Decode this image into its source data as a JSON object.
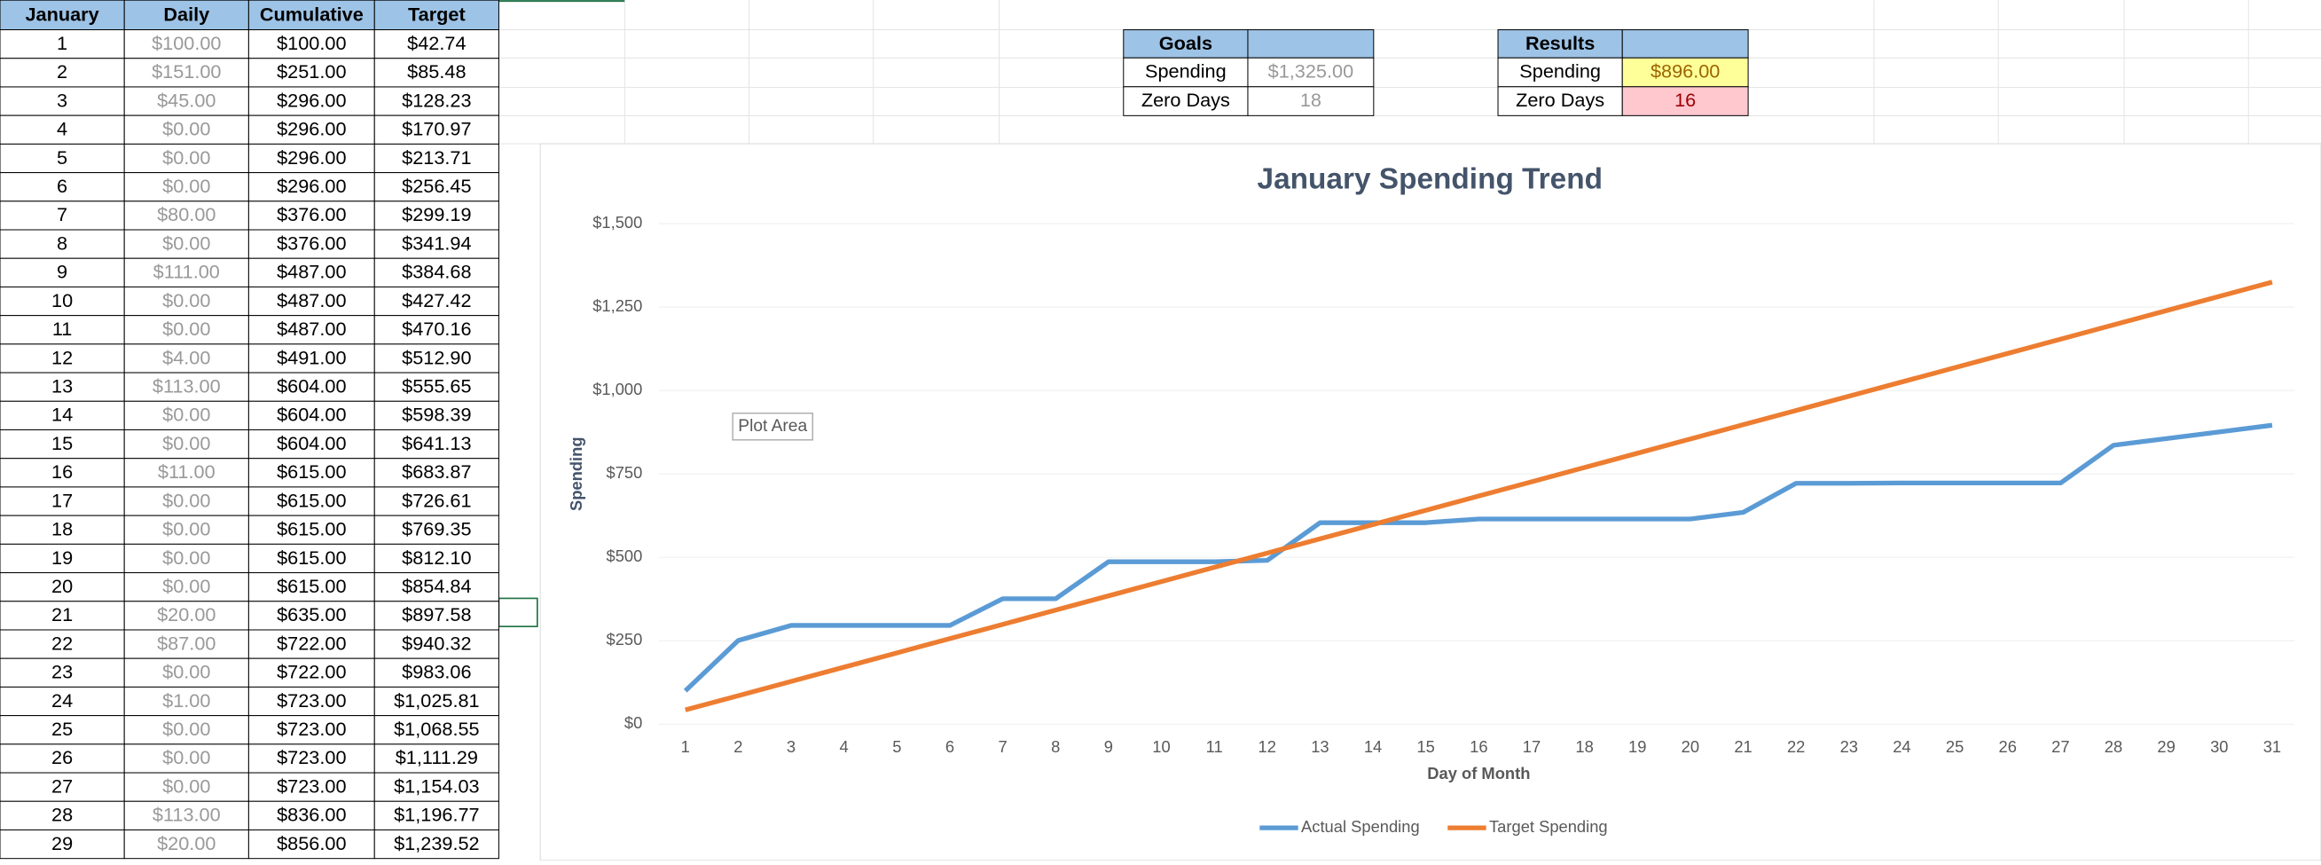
{
  "table": {
    "columns": [
      "January",
      "Daily",
      "Cumulative",
      "Target"
    ],
    "rows": [
      [
        "1",
        "$100.00",
        "$100.00",
        "$42.74"
      ],
      [
        "2",
        "$151.00",
        "$251.00",
        "$85.48"
      ],
      [
        "3",
        "$45.00",
        "$296.00",
        "$128.23"
      ],
      [
        "4",
        "$0.00",
        "$296.00",
        "$170.97"
      ],
      [
        "5",
        "$0.00",
        "$296.00",
        "$213.71"
      ],
      [
        "6",
        "$0.00",
        "$296.00",
        "$256.45"
      ],
      [
        "7",
        "$80.00",
        "$376.00",
        "$299.19"
      ],
      [
        "8",
        "$0.00",
        "$376.00",
        "$341.94"
      ],
      [
        "9",
        "$111.00",
        "$487.00",
        "$384.68"
      ],
      [
        "10",
        "$0.00",
        "$487.00",
        "$427.42"
      ],
      [
        "11",
        "$0.00",
        "$487.00",
        "$470.16"
      ],
      [
        "12",
        "$4.00",
        "$491.00",
        "$512.90"
      ],
      [
        "13",
        "$113.00",
        "$604.00",
        "$555.65"
      ],
      [
        "14",
        "$0.00",
        "$604.00",
        "$598.39"
      ],
      [
        "15",
        "$0.00",
        "$604.00",
        "$641.13"
      ],
      [
        "16",
        "$11.00",
        "$615.00",
        "$683.87"
      ],
      [
        "17",
        "$0.00",
        "$615.00",
        "$726.61"
      ],
      [
        "18",
        "$0.00",
        "$615.00",
        "$769.35"
      ],
      [
        "19",
        "$0.00",
        "$615.00",
        "$812.10"
      ],
      [
        "20",
        "$0.00",
        "$615.00",
        "$854.84"
      ],
      [
        "21",
        "$20.00",
        "$635.00",
        "$897.58"
      ],
      [
        "22",
        "$87.00",
        "$722.00",
        "$940.32"
      ],
      [
        "23",
        "$0.00",
        "$722.00",
        "$983.06"
      ],
      [
        "24",
        "$1.00",
        "$723.00",
        "$1,025.81"
      ],
      [
        "25",
        "$0.00",
        "$723.00",
        "$1,068.55"
      ],
      [
        "26",
        "$0.00",
        "$723.00",
        "$1,111.29"
      ],
      [
        "27",
        "$0.00",
        "$723.00",
        "$1,154.03"
      ],
      [
        "28",
        "$113.00",
        "$836.00",
        "$1,196.77"
      ],
      [
        "29",
        "$20.00",
        "$856.00",
        "$1,239.52"
      ]
    ]
  },
  "goals": {
    "header": "Goals",
    "rows": [
      [
        "Spending",
        "$1,325.00"
      ],
      [
        "Zero Days",
        "18"
      ]
    ]
  },
  "results": {
    "header": "Results",
    "rows": [
      [
        "Spending",
        "$896.00"
      ],
      [
        "Zero Days",
        "16"
      ]
    ]
  },
  "tooltip": "Plot Area",
  "chart_data": {
    "type": "line",
    "title": "January Spending Trend",
    "y_label": "Spending",
    "x_label": "Day of Month",
    "categories": [
      1,
      2,
      3,
      4,
      5,
      6,
      7,
      8,
      9,
      10,
      11,
      12,
      13,
      14,
      15,
      16,
      17,
      18,
      19,
      20,
      21,
      22,
      23,
      24,
      25,
      26,
      27,
      28,
      29,
      30,
      31
    ],
    "series": [
      {
        "name": "Actual Spending",
        "color": "#5b9bd5",
        "values": [
          100,
          251,
          296,
          296,
          296,
          296,
          376,
          376,
          487,
          487,
          487,
          491,
          604,
          604,
          604,
          615,
          615,
          615,
          615,
          615,
          635,
          722,
          722,
          723,
          723,
          723,
          723,
          836,
          856,
          876,
          896
        ]
      },
      {
        "name": "Target Spending",
        "color": "#ed7d31",
        "values": [
          42.74,
          85.48,
          128.23,
          170.97,
          213.71,
          256.45,
          299.19,
          341.94,
          384.68,
          427.42,
          470.16,
          512.9,
          555.65,
          598.39,
          641.13,
          683.87,
          726.61,
          769.35,
          812.1,
          854.84,
          897.58,
          940.32,
          983.06,
          1025.81,
          1068.55,
          1111.29,
          1154.03,
          1196.77,
          1239.52,
          1282.26,
          1325
        ]
      }
    ],
    "ylim": [
      0,
      1500
    ],
    "yticks": [
      {
        "value": 0,
        "label": "$0"
      },
      {
        "value": 250,
        "label": "$250"
      },
      {
        "value": 500,
        "label": "$500"
      },
      {
        "value": 750,
        "label": "$750"
      },
      {
        "value": 1000,
        "label": "$1,000"
      },
      {
        "value": 1250,
        "label": "$1,250"
      },
      {
        "value": 1500,
        "label": "$1,500"
      }
    ],
    "grid": true,
    "legend": "bottom"
  }
}
